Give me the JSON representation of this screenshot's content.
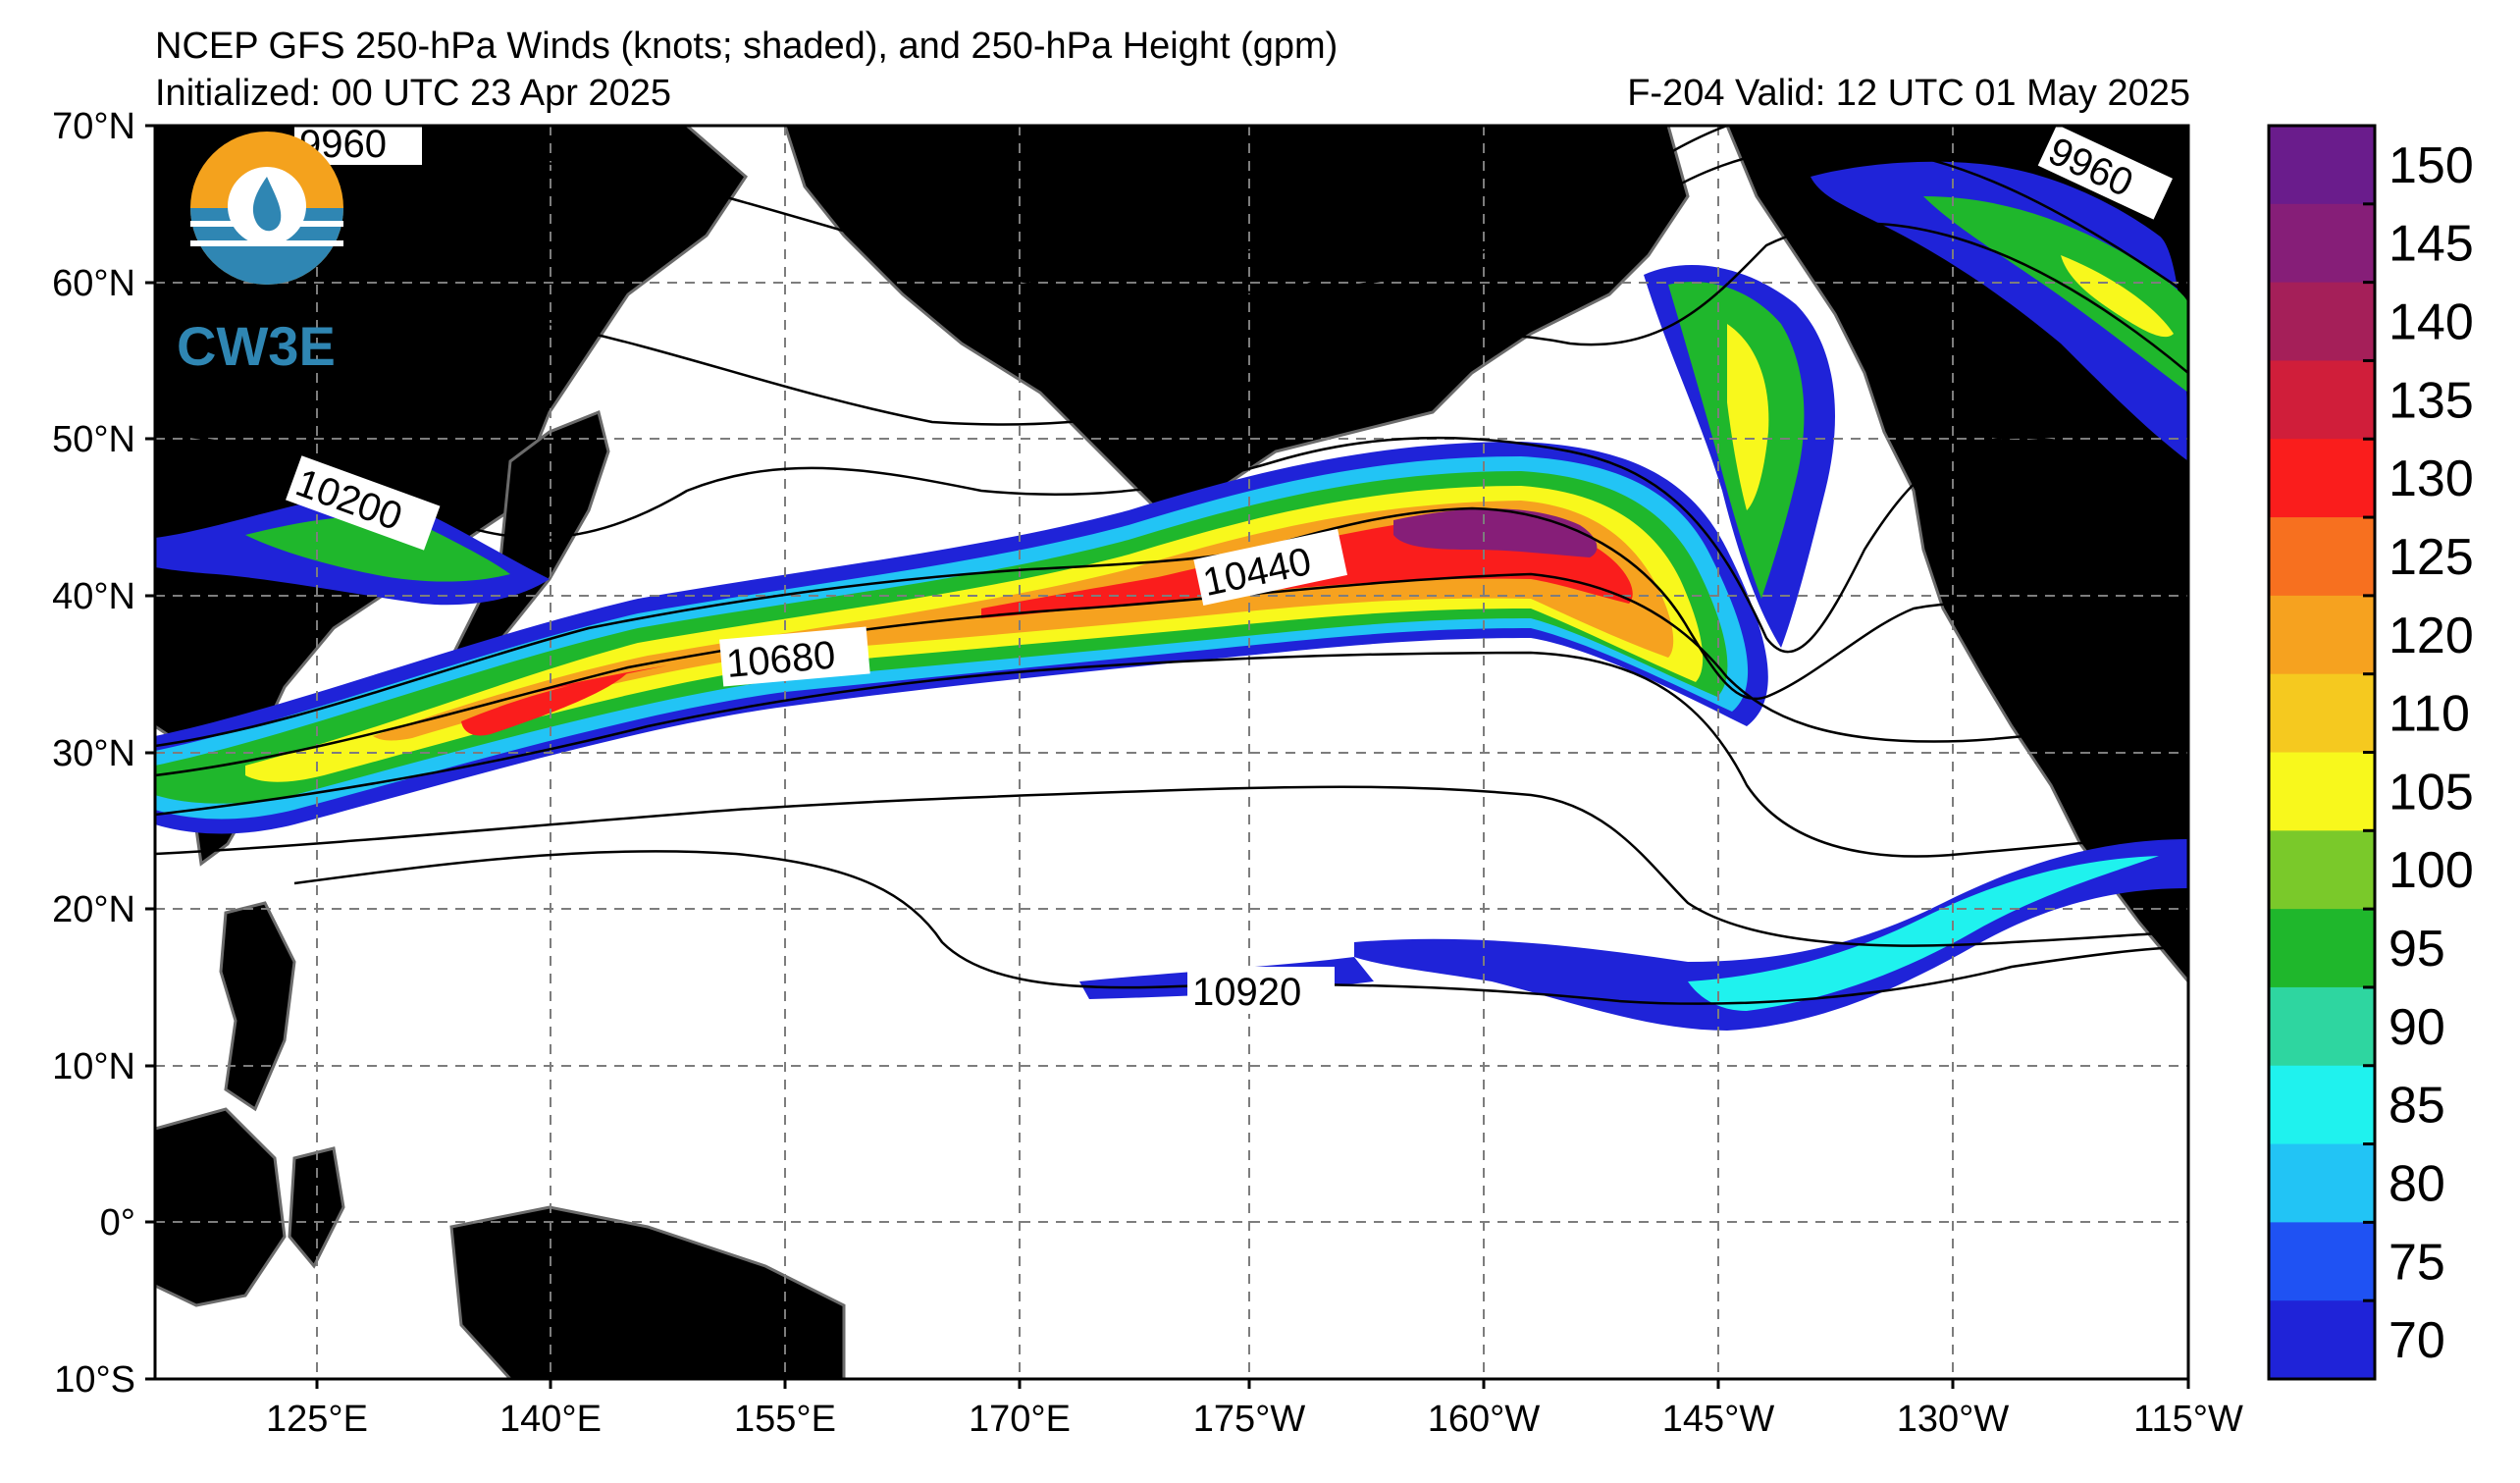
{
  "header": {
    "title": "NCEP GFS 250-hPa Winds (knots; shaded), and 250-hPa Height (gpm)",
    "initialized": "Initialized: 00 UTC 23 Apr 2025",
    "valid": "F-204  Valid: 12 UTC 01 May 2025"
  },
  "logo": {
    "text": "CW3E"
  },
  "axes": {
    "lat_labels": [
      "70°N",
      "60°N",
      "50°N",
      "40°N",
      "30°N",
      "20°N",
      "10°N",
      "0°",
      "10°S"
    ],
    "lon_labels": [
      "125°E",
      "140°E",
      "155°E",
      "170°E",
      "175°W",
      "160°W",
      "145°W",
      "130°W",
      "115°W"
    ]
  },
  "contour_labels": [
    "9960",
    "9960",
    "10200",
    "10440",
    "10680",
    "10920"
  ],
  "colorbar": {
    "ticks": [
      "150",
      "145",
      "140",
      "135",
      "130",
      "125",
      "120",
      "110",
      "105",
      "100",
      "95",
      "90",
      "85",
      "80",
      "75",
      "70"
    ],
    "colors": [
      "#6a1c8c",
      "#861e78",
      "#a51f59",
      "#d01e3a",
      "#fa1d1c",
      "#f7701f",
      "#f6a21f",
      "#f5c91f",
      "#f8f81c",
      "#7ac92a",
      "#1fb72c",
      "#2ed6a0",
      "#1ff2ee",
      "#22c4f5",
      "#1f52f3",
      "#1f23d8"
    ]
  },
  "colors": {
    "land": "#e2e2e2",
    "coast": "#6b6b6b",
    "grid": "#7d7d7d",
    "contour": "#000000"
  }
}
